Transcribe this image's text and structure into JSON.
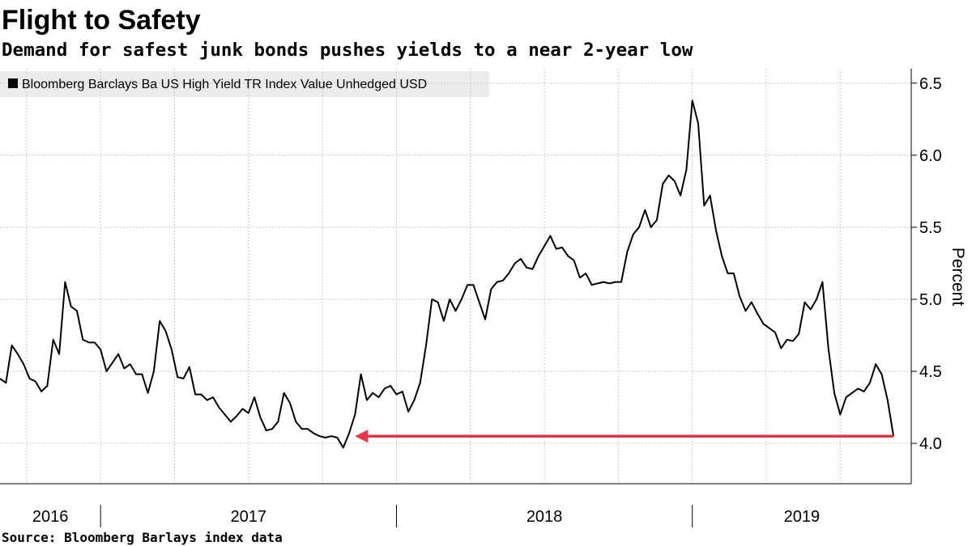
{
  "chart_data": {
    "type": "line",
    "title": "Flight to Safety",
    "subtitle": "Demand for safest junk bonds pushes yields to a near 2-year low",
    "source": "Source: Bloomberg Barlays index data",
    "y_label": "Percent",
    "x": [
      2016.66,
      2016.68,
      2016.7,
      2016.72,
      2016.74,
      2016.76,
      2016.78,
      2016.8,
      2016.82,
      2016.84,
      2016.86,
      2016.88,
      2016.9,
      2016.92,
      2016.94,
      2016.96,
      2016.98,
      2017.0,
      2017.02,
      2017.04,
      2017.06,
      2017.08,
      2017.1,
      2017.12,
      2017.14,
      2017.16,
      2017.18,
      2017.2,
      2017.22,
      2017.24,
      2017.26,
      2017.28,
      2017.3,
      2017.32,
      2017.34,
      2017.36,
      2017.38,
      2017.4,
      2017.42,
      2017.44,
      2017.46,
      2017.48,
      2017.5,
      2017.52,
      2017.54,
      2017.56,
      2017.58,
      2017.6,
      2017.62,
      2017.64,
      2017.66,
      2017.68,
      2017.7,
      2017.72,
      2017.74,
      2017.76,
      2017.78,
      2017.8,
      2017.82,
      2017.84,
      2017.86,
      2017.88,
      2017.9,
      2017.92,
      2017.94,
      2017.96,
      2017.98,
      2018.0,
      2018.02,
      2018.04,
      2018.06,
      2018.08,
      2018.1,
      2018.12,
      2018.14,
      2018.16,
      2018.18,
      2018.2,
      2018.22,
      2018.24,
      2018.26,
      2018.28,
      2018.3,
      2018.32,
      2018.34,
      2018.36,
      2018.38,
      2018.4,
      2018.42,
      2018.44,
      2018.46,
      2018.48,
      2018.5,
      2018.52,
      2018.54,
      2018.56,
      2018.58,
      2018.6,
      2018.62,
      2018.64,
      2018.66,
      2018.68,
      2018.7,
      2018.72,
      2018.74,
      2018.76,
      2018.78,
      2018.8,
      2018.82,
      2018.84,
      2018.86,
      2018.88,
      2018.9,
      2018.92,
      2018.94,
      2018.96,
      2018.98,
      2019.0,
      2019.02,
      2019.04,
      2019.06,
      2019.08,
      2019.1,
      2019.12,
      2019.14,
      2019.16,
      2019.18,
      2019.2,
      2019.22,
      2019.24,
      2019.26,
      2019.28,
      2019.3,
      2019.32,
      2019.34,
      2019.36,
      2019.38,
      2019.4,
      2019.42,
      2019.44,
      2019.46,
      2019.48,
      2019.5,
      2019.52,
      2019.54,
      2019.56,
      2019.58,
      2019.6,
      2019.62,
      2019.64,
      2019.66,
      2019.68
    ],
    "series": [
      {
        "name": "Bloomberg Barclays Ba US High Yield TR Index Value Unhedged USD",
        "color": "#000000",
        "values": [
          4.45,
          4.42,
          4.68,
          4.62,
          4.55,
          4.45,
          4.43,
          4.36,
          4.4,
          4.72,
          4.62,
          5.12,
          4.95,
          4.92,
          4.72,
          4.7,
          4.7,
          4.65,
          4.5,
          4.56,
          4.62,
          4.52,
          4.55,
          4.48,
          4.48,
          4.35,
          4.5,
          4.85,
          4.78,
          4.65,
          4.46,
          4.45,
          4.53,
          4.34,
          4.34,
          4.3,
          4.32,
          4.25,
          4.2,
          4.15,
          4.19,
          4.24,
          4.21,
          4.32,
          4.18,
          4.09,
          4.1,
          4.15,
          4.35,
          4.28,
          4.15,
          4.1,
          4.1,
          4.07,
          4.05,
          4.04,
          4.05,
          4.04,
          3.97,
          4.07,
          4.2,
          4.48,
          4.3,
          4.35,
          4.32,
          4.38,
          4.4,
          4.34,
          4.36,
          4.22,
          4.3,
          4.42,
          4.68,
          5.0,
          4.98,
          4.85,
          5.0,
          4.92,
          5.0,
          5.1,
          5.1,
          4.98,
          4.86,
          5.07,
          5.12,
          5.13,
          5.18,
          5.25,
          5.28,
          5.22,
          5.21,
          5.3,
          5.37,
          5.44,
          5.35,
          5.36,
          5.3,
          5.27,
          5.15,
          5.18,
          5.1,
          5.11,
          5.12,
          5.11,
          5.12,
          5.12,
          5.33,
          5.45,
          5.5,
          5.62,
          5.5,
          5.55,
          5.8,
          5.86,
          5.82,
          5.72,
          5.9,
          6.38,
          6.22,
          5.65,
          5.72,
          5.48,
          5.3,
          5.18,
          5.18,
          5.02,
          4.92,
          4.98,
          4.9,
          4.83,
          4.8,
          4.77,
          4.66,
          4.72,
          4.71,
          4.76,
          4.98,
          4.93,
          5.0,
          5.12,
          4.66,
          4.35,
          4.2,
          4.32,
          4.35,
          4.38,
          4.36,
          4.42,
          4.55,
          4.48,
          4.3,
          4.05
        ]
      }
    ],
    "xlim": [
      2016.66,
      2019.74
    ],
    "xticks": [
      2017,
      2018,
      2019
    ],
    "year_labels": [
      "2016",
      "2017",
      "2018",
      "2019"
    ],
    "xgrid": [
      2016.75,
      2017,
      2017.25,
      2017.5,
      2017.75,
      2018,
      2018.25,
      2018.5,
      2018.75,
      2019,
      2019.25,
      2019.5
    ],
    "ylim": [
      3.72,
      6.6
    ],
    "yticks": [
      {
        "value": 4,
        "label": "4.0"
      },
      4.5,
      {
        "value": 5,
        "label": "5.0"
      },
      5.5,
      {
        "value": 6,
        "label": "6.0"
      },
      6.5
    ],
    "grid": true,
    "legend": "top-left",
    "arrow": {
      "y": 4.05,
      "from": 2019.68,
      "to": 2017.86,
      "color": "#e8334a"
    }
  }
}
